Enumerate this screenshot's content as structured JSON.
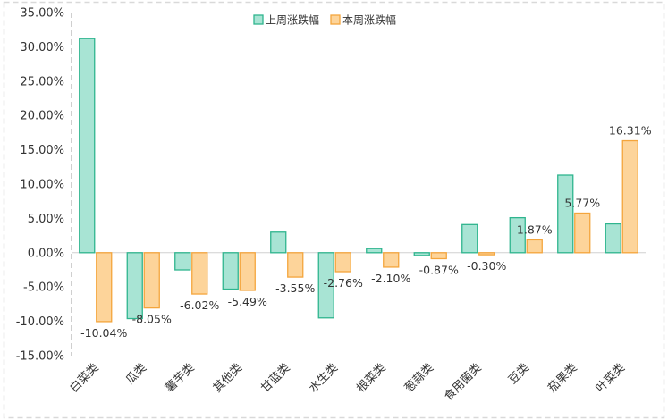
{
  "chart_data": {
    "type": "bar",
    "categories": [
      "白菜类",
      "瓜类",
      "薯芋类",
      "其他类",
      "甘蓝类",
      "水生类",
      "根菜类",
      "葱蒜类",
      "食用菌类",
      "豆类",
      "茄果类",
      "叶菜类"
    ],
    "series": [
      {
        "name": "上周涨跌幅",
        "color": "#a8e4d4",
        "stroke": "#2fb58e",
        "values": [
          31.2,
          -9.6,
          -2.5,
          -5.3,
          3.0,
          -9.5,
          0.6,
          -0.4,
          4.1,
          5.1,
          11.3,
          4.2
        ],
        "labels": [
          "",
          "",
          "",
          "",
          "",
          "",
          "",
          "",
          "",
          "",
          "",
          ""
        ]
      },
      {
        "name": "本周涨跌幅",
        "color": "#fdd49a",
        "stroke": "#f4a53c",
        "values": [
          -10.04,
          -8.05,
          -6.02,
          -5.49,
          -3.55,
          -2.76,
          -2.1,
          -0.87,
          -0.3,
          1.87,
          5.77,
          16.31
        ],
        "labels": [
          "-10.04%",
          "-8.05%",
          "-6.02%",
          "-5.49%",
          "-3.55%",
          "-2.76%",
          "-2.10%",
          "-0.87%",
          "-0.30%",
          "1.87%",
          "5.77%",
          "16.31%"
        ]
      }
    ],
    "ylim": [
      -15,
      35
    ],
    "yticks": [
      "-15.00%",
      "-10.00%",
      "-5.00%",
      "0.00%",
      "5.00%",
      "10.00%",
      "15.00%",
      "20.00%",
      "25.00%",
      "30.00%",
      "35.00%"
    ],
    "legend_position": "top-center",
    "grid": false,
    "border_color": "#d9d9d9",
    "axis_color": "#bfbfbf"
  }
}
